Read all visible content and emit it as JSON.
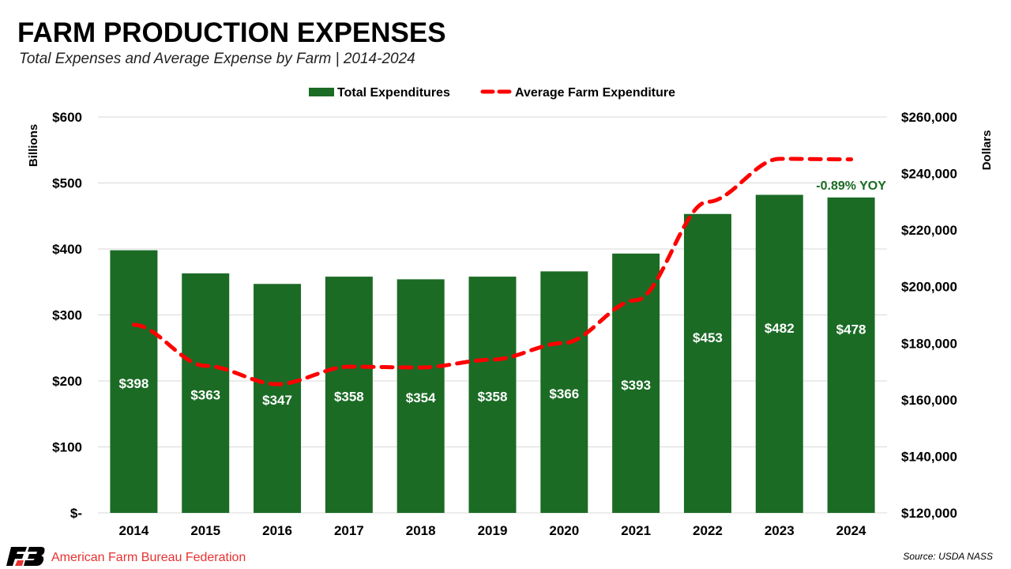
{
  "header": {
    "title": "FARM PRODUCTION EXPENSES",
    "subtitle": "Total Expenses and Average Expense by Farm  |  2014-2024"
  },
  "footer": {
    "brand": "American Farm Bureau Federation",
    "source": "Source: USDA NASS"
  },
  "colors": {
    "bar": "#1b6b25",
    "line": "#ff0000",
    "grid": "#d9d9d9",
    "annotation": "#1b6b25"
  },
  "chart_data": {
    "type": "bar",
    "title": "FARM PRODUCTION EXPENSES",
    "categories": [
      "2014",
      "2015",
      "2016",
      "2017",
      "2018",
      "2019",
      "2020",
      "2021",
      "2022",
      "2023",
      "2024"
    ],
    "series": [
      {
        "name": "Total Expenditures",
        "type": "bar",
        "axis": "left",
        "values": [
          398,
          363,
          347,
          358,
          354,
          358,
          366,
          393,
          453,
          482,
          478
        ],
        "labels": [
          "$398",
          "$363",
          "$347",
          "$358",
          "$354",
          "$358",
          "$366",
          "$393",
          "$453",
          "$482",
          "$478"
        ]
      },
      {
        "name": "Average Farm Expenditure",
        "type": "line",
        "style": "dashed",
        "axis": "right",
        "values": [
          186500,
          172000,
          165500,
          171700,
          171400,
          174200,
          180100,
          195200,
          230000,
          245200,
          245000
        ]
      }
    ],
    "ylabel": "Billions",
    "ylabel_right": "Dollars",
    "ylim": [
      0,
      600
    ],
    "ylim_right": [
      120000,
      260000
    ],
    "yticks": [
      "$-",
      "$100",
      "$200",
      "$300",
      "$400",
      "$500",
      "$600"
    ],
    "yticks_right": [
      "$120,000",
      "$140,000",
      "$160,000",
      "$180,000",
      "$200,000",
      "$220,000",
      "$240,000",
      "$260,000"
    ],
    "legend_position": "top-center",
    "grid": true,
    "annotations": [
      {
        "category": "2024",
        "text": "-0.89% YOY"
      }
    ]
  }
}
